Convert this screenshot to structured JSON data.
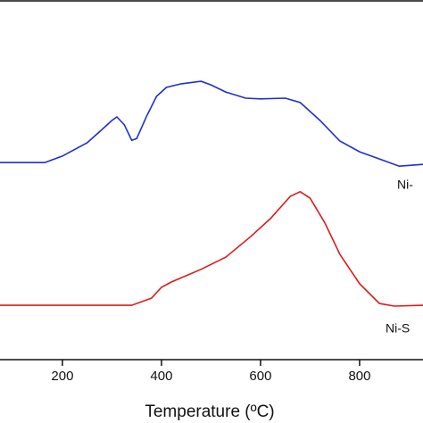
{
  "chart_data": {
    "type": "line",
    "x_label": "Temperature (ºC)",
    "xlim": [
      74,
      928
    ],
    "xticks": [
      200,
      400,
      600,
      800
    ],
    "ylim": [
      0,
      100
    ],
    "annotations": [
      "Ni-",
      "Ni-S"
    ],
    "series": [
      {
        "color": "#1f2fcc",
        "x": [
          74,
          164,
          200,
          250,
          280,
          300,
          310,
          325,
          340,
          350,
          370,
          390,
          410,
          440,
          480,
          500,
          530,
          570,
          600,
          650,
          680,
          720,
          760,
          800,
          850,
          880,
          928
        ],
        "values": [
          54.8,
          54.8,
          56.6,
          60.3,
          64.0,
          66.5,
          67.5,
          65.3,
          61.0,
          61.5,
          67.7,
          73.2,
          75.7,
          76.7,
          77.4,
          76.4,
          74.4,
          72.7,
          72.5,
          72.7,
          71.5,
          66.5,
          60.8,
          57.8,
          55.3,
          53.8,
          54.3
        ]
      },
      {
        "color": "#dd1a1a",
        "x": [
          74,
          300,
          340,
          380,
          400,
          420,
          480,
          530,
          580,
          620,
          660,
          680,
          700,
          730,
          760,
          800,
          840,
          870,
          928
        ],
        "values": [
          15.1,
          15.1,
          15.1,
          17.1,
          20.1,
          21.6,
          25.1,
          28.5,
          34.2,
          39.2,
          45.4,
          46.7,
          44.9,
          38.0,
          29.3,
          21.1,
          15.6,
          14.9,
          15.1
        ]
      }
    ]
  }
}
